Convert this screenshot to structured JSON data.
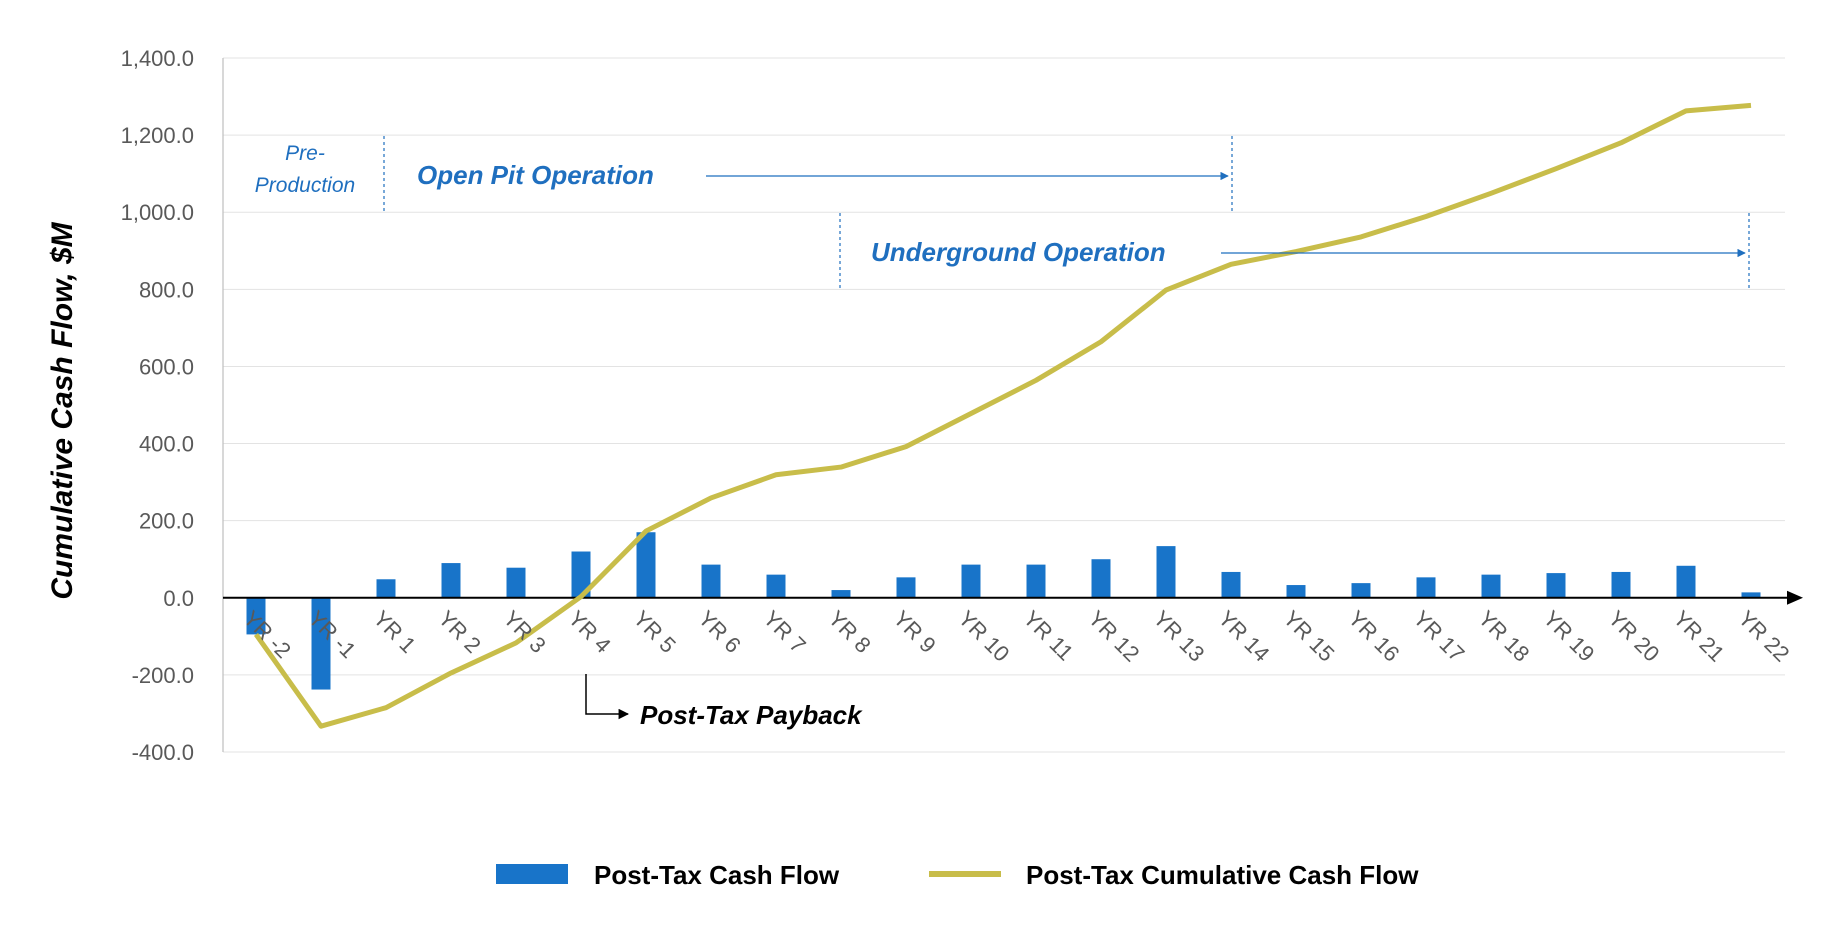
{
  "chart_data": {
    "type": "bar+line",
    "title": "",
    "xlabel": "",
    "ylabel": "Cumulative Cash Flow, $M",
    "ylim": [
      -400,
      1400
    ],
    "ytick_step": 200,
    "ytick_labels": [
      "-400.0",
      "-200.0",
      "0.0",
      "200.0",
      "400.0",
      "600.0",
      "800.0",
      "1,000.0",
      "1,200.0",
      "1,400.0"
    ],
    "grid": true,
    "categories": [
      "YR -2",
      "YR -1",
      "YR 1",
      "YR 2",
      "YR 3",
      "YR 4",
      "YR 5",
      "YR 6",
      "YR 7",
      "YR 8",
      "YR 9",
      "YR 10",
      "YR 11",
      "YR 12",
      "YR 13",
      "YR 14",
      "YR 15",
      "YR 16",
      "YR 17",
      "YR 18",
      "YR 19",
      "YR 20",
      "YR 21",
      "YR 22"
    ],
    "series": [
      {
        "name": "Post-Tax Cash Flow",
        "kind": "bar",
        "color": "#1874c9",
        "values": [
          -95,
          -238,
          48,
          90,
          78,
          120,
          170,
          86,
          60,
          20,
          53,
          86,
          86,
          100,
          134,
          67,
          33,
          38,
          53,
          60,
          64,
          67,
          83,
          14
        ]
      },
      {
        "name": "Post-Tax Cumulative Cash Flow",
        "kind": "line",
        "color": "#c8bd4a",
        "values": [
          -95,
          -333,
          -285,
          -195,
          -117,
          3,
          173,
          259,
          319,
          339,
          392,
          478,
          564,
          664,
          798,
          865,
          898,
          936,
          989,
          1049,
          1113,
          1180,
          1263,
          1277
        ]
      }
    ],
    "annotations": {
      "pre_production": [
        "Pre-",
        "Production"
      ],
      "open_pit": "Open Pit Operation",
      "underground": "Underground Operation",
      "payback": "Post-Tax Payback"
    },
    "legend_position": "bottom"
  }
}
